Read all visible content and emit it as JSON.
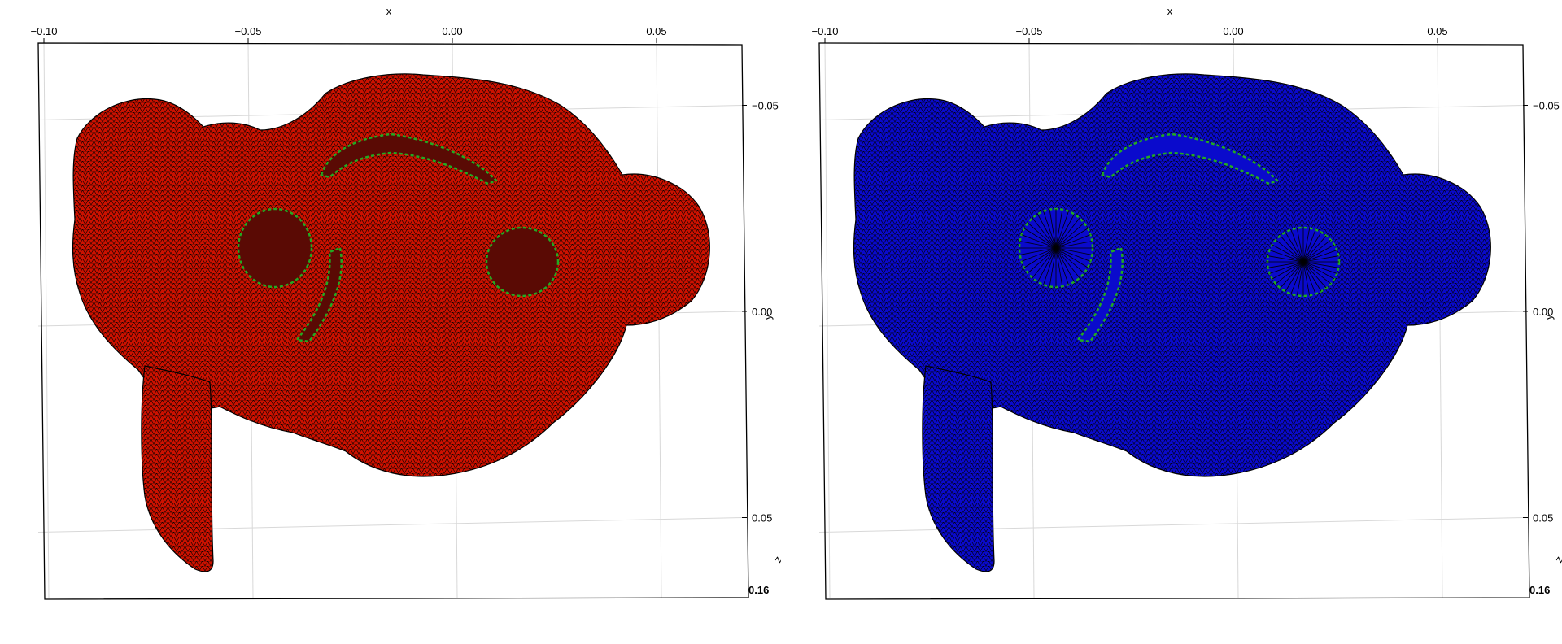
{
  "chart_data": [
    {
      "type": "scatter",
      "title": "",
      "xlabel": "x",
      "ylabel": "y",
      "zlabel": "z",
      "xlim": [
        -0.1,
        0.07
      ],
      "ylim": [
        -0.065,
        0.07
      ],
      "x_ticks": [
        "−0.10",
        "−0.05",
        "0.00",
        "0.05"
      ],
      "x_tick_values": [
        -0.1,
        -0.05,
        0.0,
        0.05
      ],
      "y_ticks": [
        "−0.05",
        "0.00",
        "0.05"
      ],
      "y_tick_values": [
        -0.05,
        0.0,
        0.05
      ],
      "z_tick_label": "0.16",
      "grid": true,
      "mesh_color": "#cc1100",
      "edge_color": "#000000",
      "boundary_color": "#22aa22",
      "holes_filled": false
    },
    {
      "type": "scatter",
      "title": "",
      "xlabel": "x",
      "ylabel": "y",
      "zlabel": "z",
      "xlim": [
        -0.1,
        0.07
      ],
      "ylim": [
        -0.065,
        0.07
      ],
      "x_ticks": [
        "−0.10",
        "−0.05",
        "0.00",
        "0.05"
      ],
      "x_tick_values": [
        -0.1,
        -0.05,
        0.0,
        0.05
      ],
      "y_ticks": [
        "−0.05",
        "0.00",
        "0.05"
      ],
      "y_tick_values": [
        -0.05,
        0.0,
        0.05
      ],
      "z_tick_label": "0.16",
      "grid": true,
      "mesh_color": "#0a0acc",
      "edge_color": "#000000",
      "boundary_color": "#22aa22",
      "holes_filled": true
    }
  ]
}
